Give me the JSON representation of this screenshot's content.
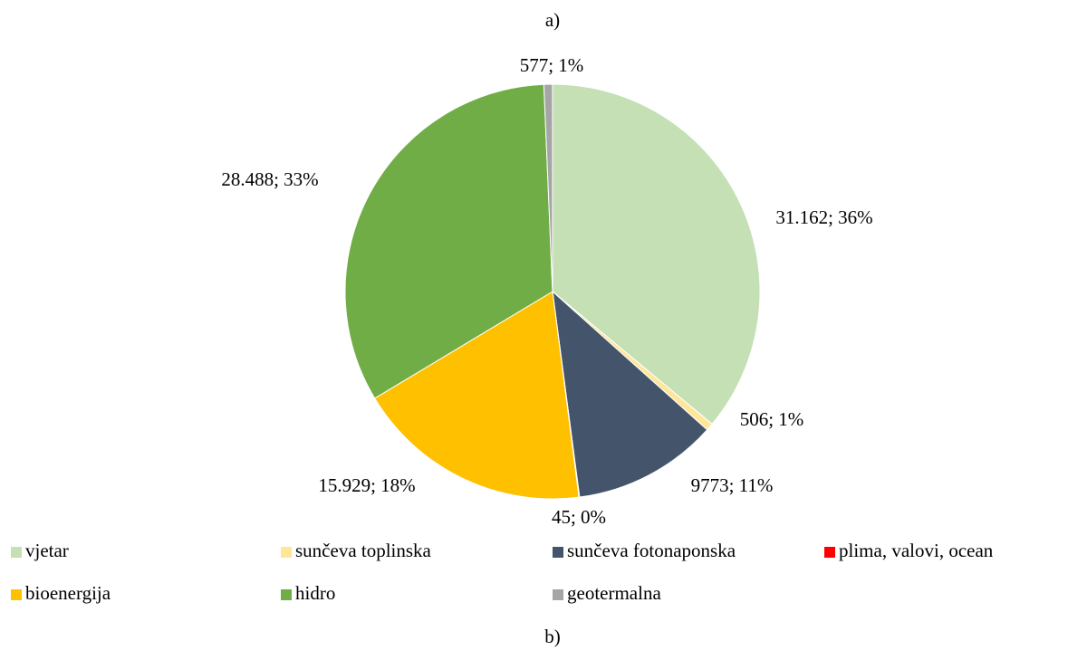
{
  "chart_data": {
    "type": "pie",
    "title": "a)",
    "caption": "b)",
    "categories": [
      "vjetar",
      "sunčeva toplinska",
      "sunčeva fotonaponska",
      "plima, valovi, ocean",
      "bioenergija",
      "hidro",
      "geotermalna"
    ],
    "values": [
      31162,
      506,
      9773,
      45,
      15929,
      28488,
      577
    ],
    "value_labels": [
      "31.162; 36%",
      "506; 1%",
      "9773; 11%",
      "45; 0%",
      "15.929; 18%",
      "28.488; 33%",
      "577; 1%"
    ],
    "colors": [
      "#c5e0b4",
      "#ffe699",
      "#44546a",
      "#ff0000",
      "#ffc000",
      "#70ad47",
      "#a5a5a5"
    ],
    "legend": "bottom"
  }
}
